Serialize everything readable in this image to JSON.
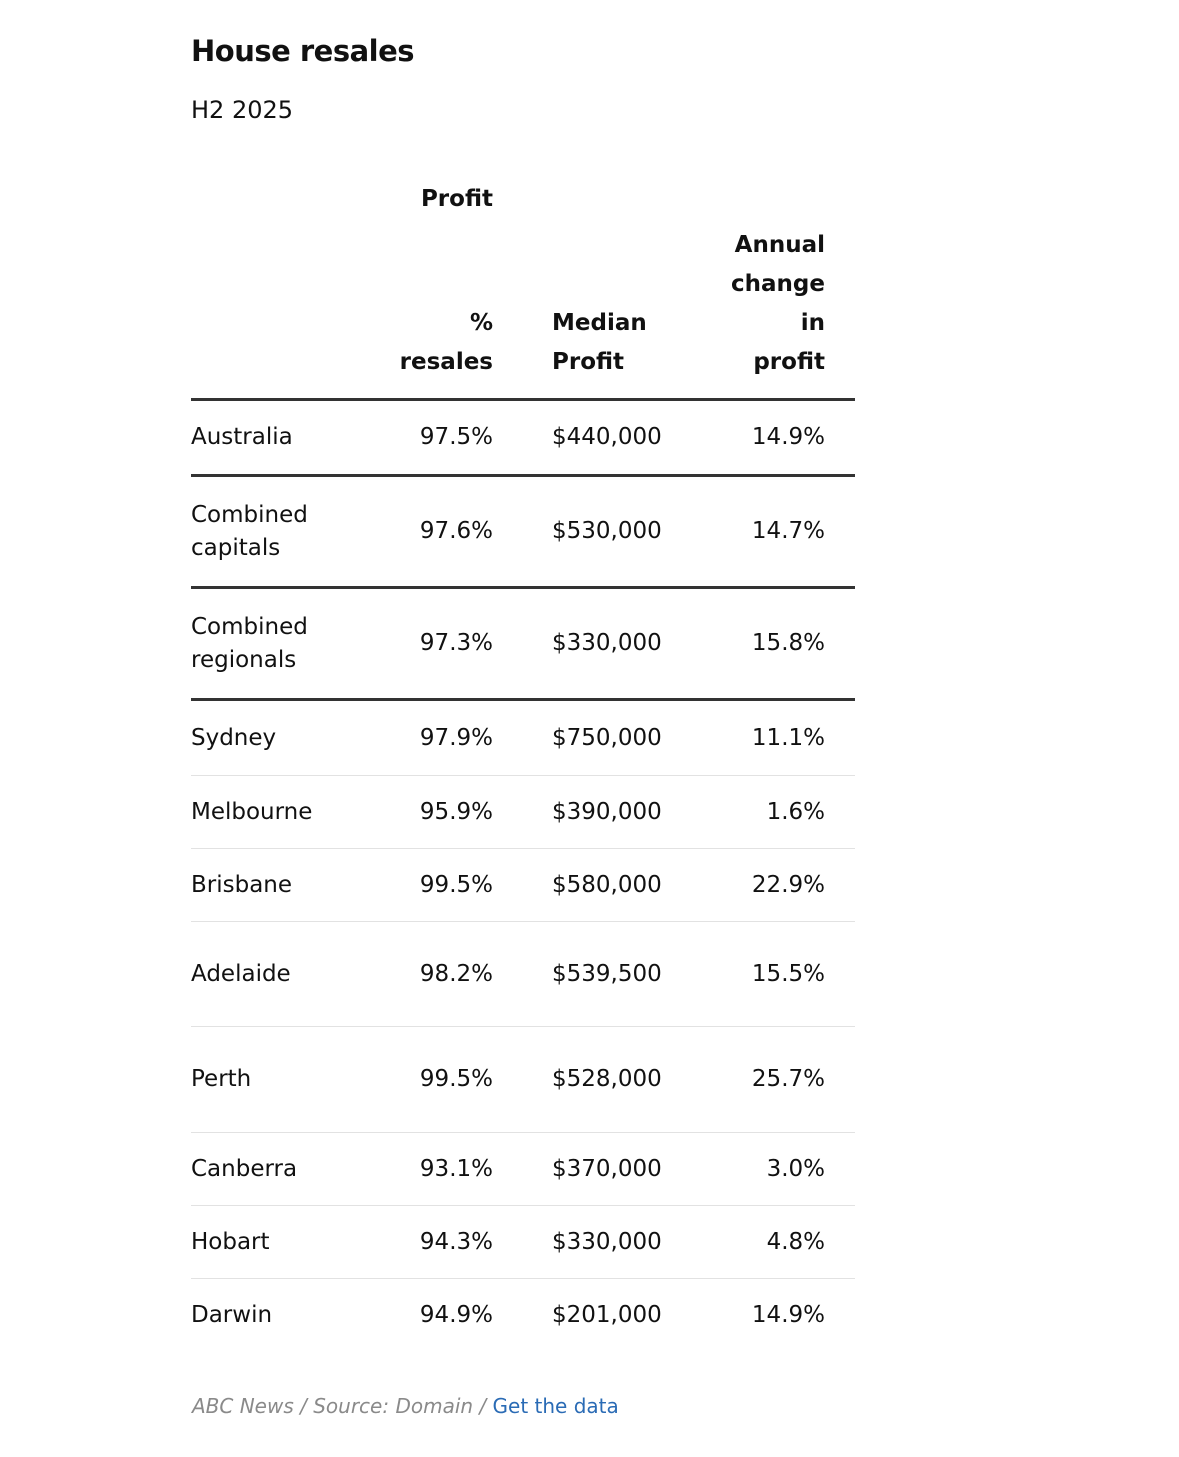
{
  "header": {
    "title": "House resales",
    "subtitle": "H2 2025"
  },
  "table": {
    "group_header": "Profit",
    "columns": [
      "% resales",
      "Median Profit",
      "Annual change in profit"
    ],
    "rows": [
      [
        "Australia",
        "97.5%",
        "$440,000",
        "14.9%"
      ],
      [
        "Combined capitals",
        "97.6%",
        "$530,000",
        "14.7%"
      ],
      [
        "Combined regionals",
        "97.3%",
        "$330,000",
        "15.8%"
      ],
      [
        "Sydney",
        "97.9%",
        "$750,000",
        "11.1%"
      ],
      [
        "Melbourne",
        "95.9%",
        "$390,000",
        "1.6%"
      ],
      [
        "Brisbane",
        "99.5%",
        "$580,000",
        "22.9%"
      ],
      [
        "Adelaide",
        "98.2%",
        "$539,500",
        "15.5%"
      ],
      [
        "Perth",
        "99.5%",
        "$528,000",
        "25.7%"
      ],
      [
        "Canberra",
        "93.1%",
        "$370,000",
        "3.0%"
      ],
      [
        "Hobart",
        "94.3%",
        "$330,000",
        "4.8%"
      ],
      [
        "Darwin",
        "94.9%",
        "$201,000",
        "14.9%"
      ]
    ]
  },
  "footer": {
    "credit": "ABC News / Source: Domain /",
    "link": "Get the data"
  }
}
